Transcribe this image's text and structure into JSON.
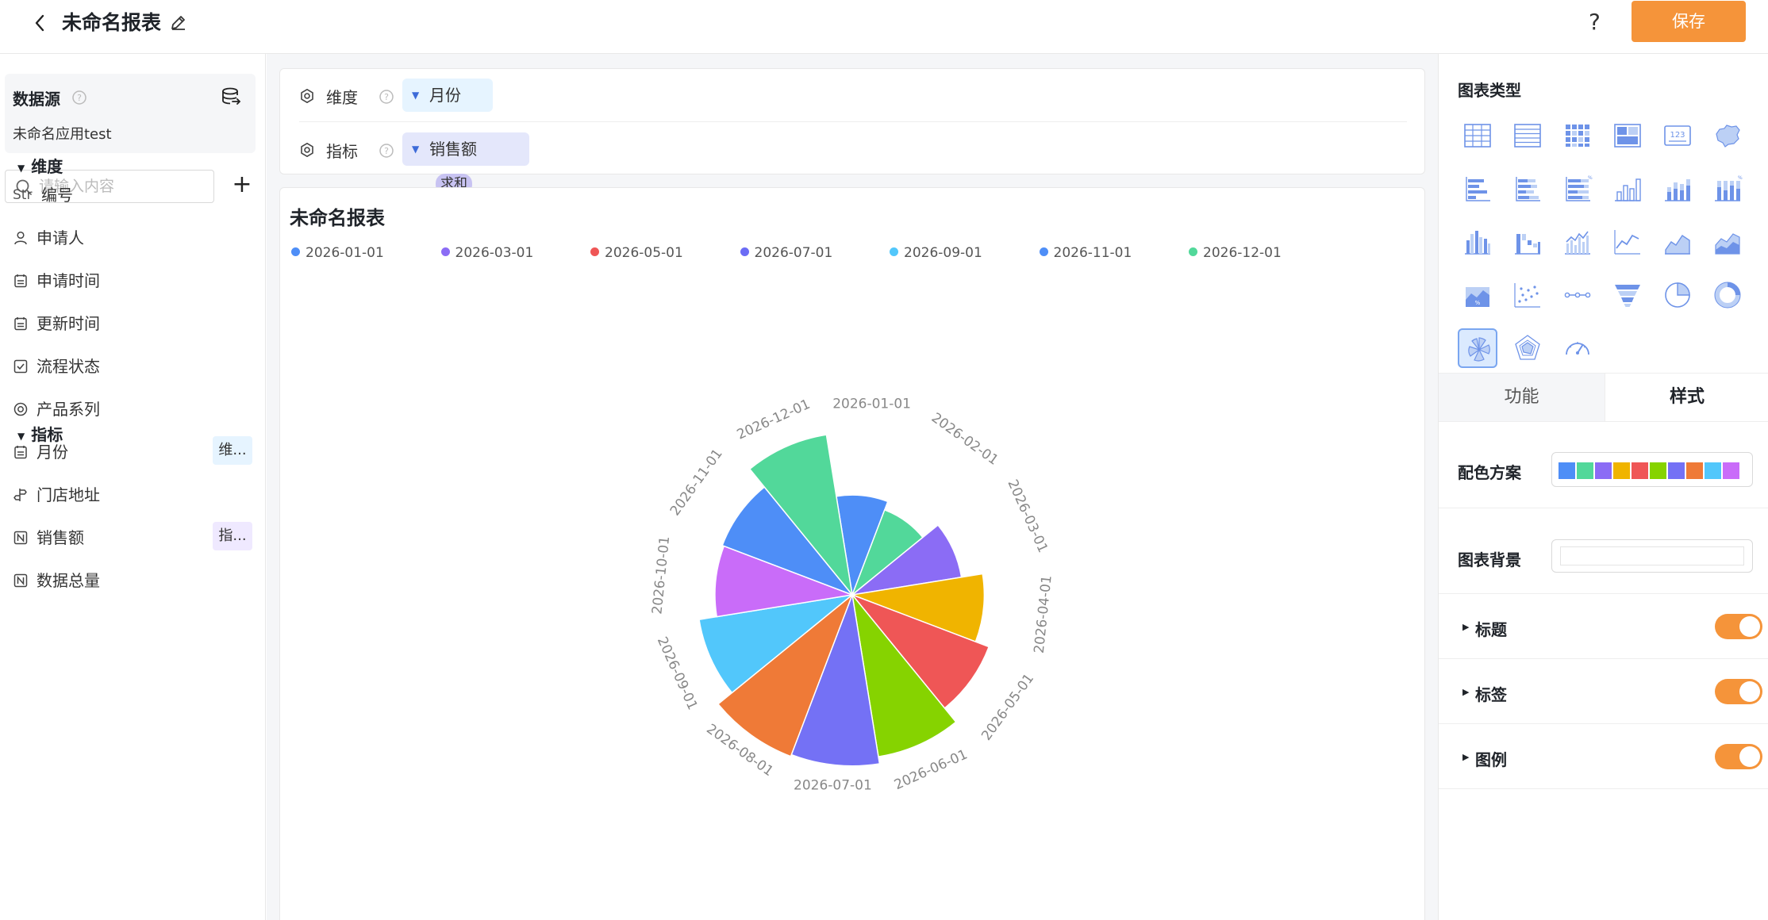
{
  "header": {
    "title": "未命名报表",
    "help_label": "?",
    "save_label": "保存"
  },
  "sidebar": {
    "datasource_title": "数据源",
    "datasource_name": "未命名应用test",
    "search_placeholder": "请输入内容",
    "add_label": "+",
    "dimension_group": "维度",
    "indicator_group": "指标",
    "dimensions": [
      {
        "label": "编号",
        "type": "Str"
      },
      {
        "label": "申请人",
        "icon": "user-icon"
      },
      {
        "label": "申请时间",
        "icon": "calendar-icon"
      },
      {
        "label": "更新时间",
        "icon": "calendar-icon"
      },
      {
        "label": "流程状态",
        "icon": "checkbox-icon"
      },
      {
        "label": "产品系列",
        "icon": "radio-icon"
      },
      {
        "label": "月份",
        "icon": "calendar-icon",
        "tag": "维..."
      },
      {
        "label": "门店地址",
        "icon": "signpost-icon"
      }
    ],
    "indicators": [
      {
        "label": "销售额",
        "icon": "number-icon",
        "tag": "指..."
      },
      {
        "label": "数据总量",
        "icon": "number-icon"
      }
    ]
  },
  "config": {
    "dimension_label": "维度",
    "dimension_value": "月份",
    "indicator_label": "指标",
    "indicator_value": "销售额",
    "indicator_agg": "求和"
  },
  "chart_data": {
    "type": "rose",
    "title": "未命名报表",
    "legend": [
      "2026-01-01",
      "2026-03-01",
      "2026-05-01",
      "2026-07-01",
      "2026-09-01",
      "2026-11-01",
      "2026-12-01"
    ],
    "legend_colors": [
      "#4e8ef7",
      "#8b6cf5",
      "#ef5656",
      "#6b6cf5",
      "#52c7fb",
      "#4e8ef7",
      "#52d89a"
    ],
    "categories": [
      "2026-01-01",
      "2026-02-01",
      "2026-03-01",
      "2026-04-01",
      "2026-05-01",
      "2026-06-01",
      "2026-07-01",
      "2026-08-01",
      "2026-09-01",
      "2026-10-01",
      "2026-11-01",
      "2026-12-01"
    ],
    "values": [
      56,
      51,
      62,
      74,
      82,
      92,
      96,
      97,
      87,
      77,
      78,
      91
    ],
    "colors": [
      "#4e8ef7",
      "#52d89a",
      "#8b6cf5",
      "#f0b400",
      "#ef5656",
      "#86d300",
      "#7471f5",
      "#ef7a37",
      "#52c7fb",
      "#c96cf9",
      "#4e8ef7",
      "#52d89a"
    ]
  },
  "right_panel": {
    "chart_type_title": "图表类型",
    "chart_types": [
      "table-icon",
      "detail-table-icon",
      "pivot-table-icon",
      "card-table-icon",
      "kpi-number-icon",
      "map-icon",
      "bar-h-icon",
      "bar-h-stack-icon",
      "bar-h-percent-icon",
      "column-icon",
      "column-stack-icon",
      "column-percent-icon",
      "column-group-icon",
      "waterfall-icon",
      "combo-icon",
      "line-icon",
      "area-icon",
      "area-stack-icon",
      "area-percent-icon",
      "scatter-icon",
      "dot-line-icon",
      "funnel-icon",
      "pie-icon",
      "donut-icon",
      "rose-icon",
      "radar-icon",
      "gauge-icon"
    ],
    "tab_function": "功能",
    "tab_style": "样式",
    "palette_label": "配色方案",
    "palette_colors": [
      "#4e8ef7",
      "#52d89a",
      "#8b6cf5",
      "#f0b400",
      "#ef5656",
      "#86d300",
      "#7471f5",
      "#ef7a37",
      "#52c7fb",
      "#c96cf9"
    ],
    "background_label": "图表背景",
    "toggles": [
      {
        "label": "标题",
        "on": true
      },
      {
        "label": "标签",
        "on": true
      },
      {
        "label": "图例",
        "on": true
      }
    ]
  }
}
